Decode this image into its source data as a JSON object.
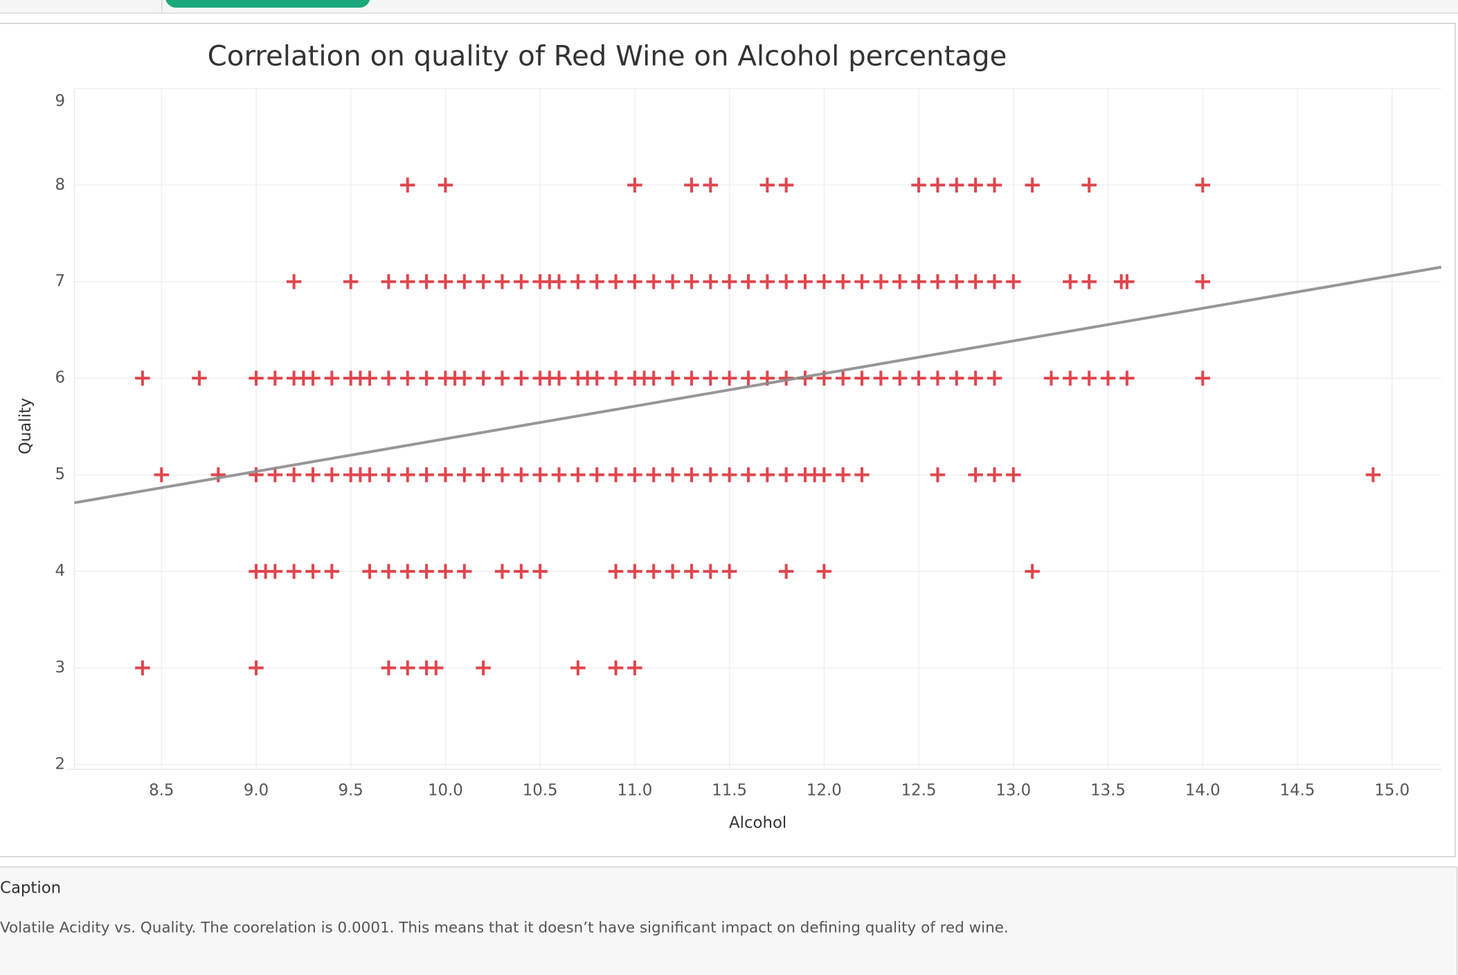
{
  "chart_data": {
    "type": "scatter",
    "title": "Correlation on quality of Red Wine on Alcohol percentage",
    "x_label": "Alcohol",
    "y_label": "Quality",
    "xlim": [
      8.04,
      15.26
    ],
    "ylim": [
      1.95,
      9
    ],
    "xticks": [
      8.5,
      {
        "value": 9,
        "label": "9.0"
      },
      9.5,
      {
        "value": 10,
        "label": "10.0"
      },
      10.5,
      {
        "value": 11,
        "label": "11.0"
      },
      11.5,
      {
        "value": 12,
        "label": "12.0"
      },
      12.5,
      {
        "value": 13,
        "label": "13.0"
      },
      13.5,
      {
        "value": 14,
        "label": "14.0"
      },
      14.5,
      {
        "value": 15,
        "label": "15.0"
      }
    ],
    "yticks": [
      2,
      3,
      4,
      5,
      6,
      7,
      8,
      9
    ],
    "grid": true,
    "series": [
      {
        "color": "#e0464e",
        "x": [
          9.8,
          10.0,
          11.0,
          11.3,
          11.4,
          11.7,
          11.8,
          12.5,
          12.6,
          12.7,
          12.8,
          12.9,
          13.1,
          13.4,
          14.0
        ],
        "values": [
          8,
          8,
          8,
          8,
          8,
          8,
          8,
          8,
          8,
          8,
          8,
          8,
          8,
          8,
          8
        ]
      },
      {
        "color": "#e0464e",
        "x": [
          9.2,
          9.5,
          9.7,
          9.8,
          9.9,
          10.0,
          10.1,
          10.2,
          10.3,
          10.4,
          10.5,
          10.55,
          10.6,
          10.7,
          10.8,
          10.9,
          11.0,
          11.1,
          11.2,
          11.3,
          11.4,
          11.5,
          11.6,
          11.7,
          11.8,
          11.9,
          12.0,
          12.1,
          12.2,
          12.3,
          12.4,
          12.5,
          12.6,
          12.7,
          12.8,
          12.9,
          13.0,
          13.3,
          13.4,
          13.57,
          13.6,
          14.0
        ],
        "values": [
          7,
          7,
          7,
          7,
          7,
          7,
          7,
          7,
          7,
          7,
          7,
          7,
          7,
          7,
          7,
          7,
          7,
          7,
          7,
          7,
          7,
          7,
          7,
          7,
          7,
          7,
          7,
          7,
          7,
          7,
          7,
          7,
          7,
          7,
          7,
          7,
          7,
          7,
          7,
          7,
          7,
          7
        ]
      },
      {
        "color": "#e0464e",
        "x": [
          8.4,
          8.7,
          9.0,
          9.1,
          9.2,
          9.25,
          9.3,
          9.4,
          9.5,
          9.55,
          9.6,
          9.7,
          9.8,
          9.9,
          10.0,
          10.05,
          10.1,
          10.2,
          10.3,
          10.4,
          10.5,
          10.55,
          10.6,
          10.7,
          10.75,
          10.8,
          10.9,
          11.0,
          11.05,
          11.1,
          11.2,
          11.3,
          11.4,
          11.5,
          11.6,
          11.7,
          11.8,
          11.9,
          12.0,
          12.1,
          12.2,
          12.3,
          12.4,
          12.5,
          12.6,
          12.7,
          12.8,
          12.9,
          13.2,
          13.3,
          13.4,
          13.5,
          13.6,
          14.0
        ],
        "values": [
          6,
          6,
          6,
          6,
          6,
          6,
          6,
          6,
          6,
          6,
          6,
          6,
          6,
          6,
          6,
          6,
          6,
          6,
          6,
          6,
          6,
          6,
          6,
          6,
          6,
          6,
          6,
          6,
          6,
          6,
          6,
          6,
          6,
          6,
          6,
          6,
          6,
          6,
          6,
          6,
          6,
          6,
          6,
          6,
          6,
          6,
          6,
          6,
          6,
          6,
          6,
          6,
          6,
          6
        ]
      },
      {
        "color": "#e0464e",
        "x": [
          8.5,
          8.8,
          9.0,
          9.1,
          9.2,
          9.3,
          9.4,
          9.5,
          9.55,
          9.6,
          9.7,
          9.8,
          9.9,
          10.0,
          10.1,
          10.2,
          10.3,
          10.4,
          10.5,
          10.6,
          10.7,
          10.8,
          10.9,
          11.0,
          11.1,
          11.2,
          11.3,
          11.4,
          11.5,
          11.6,
          11.7,
          11.8,
          11.9,
          11.95,
          12.0,
          12.1,
          12.2,
          12.6,
          12.8,
          12.9,
          13.0,
          14.9
        ],
        "values": [
          5,
          5,
          5,
          5,
          5,
          5,
          5,
          5,
          5,
          5,
          5,
          5,
          5,
          5,
          5,
          5,
          5,
          5,
          5,
          5,
          5,
          5,
          5,
          5,
          5,
          5,
          5,
          5,
          5,
          5,
          5,
          5,
          5,
          5,
          5,
          5,
          5,
          5,
          5,
          5,
          5,
          5
        ]
      },
      {
        "color": "#e0464e",
        "x": [
          9.0,
          9.05,
          9.1,
          9.2,
          9.3,
          9.4,
          9.6,
          9.7,
          9.8,
          9.9,
          10.0,
          10.1,
          10.3,
          10.4,
          10.5,
          10.9,
          11.0,
          11.1,
          11.2,
          11.3,
          11.4,
          11.5,
          11.8,
          12.0,
          13.1
        ],
        "values": [
          4,
          4,
          4,
          4,
          4,
          4,
          4,
          4,
          4,
          4,
          4,
          4,
          4,
          4,
          4,
          4,
          4,
          4,
          4,
          4,
          4,
          4,
          4,
          4,
          4
        ]
      },
      {
        "color": "#e0464e",
        "x": [
          8.4,
          9.0,
          9.7,
          9.8,
          9.9,
          9.95,
          10.2,
          10.7,
          10.9,
          11.0
        ],
        "values": [
          3,
          3,
          3,
          3,
          3,
          3,
          3,
          3,
          3,
          3
        ]
      }
    ],
    "trend_line": {
      "color": "#8c8c8c",
      "x": [
        8.04,
        15.26
      ],
      "values": [
        4.71,
        7.15
      ]
    },
    "caption_title": "Caption",
    "caption": "Volatile Acidity vs. Quality. The coorelation is 0.0001. This means that it doesn’t have significant impact on defining quality of red wine."
  }
}
